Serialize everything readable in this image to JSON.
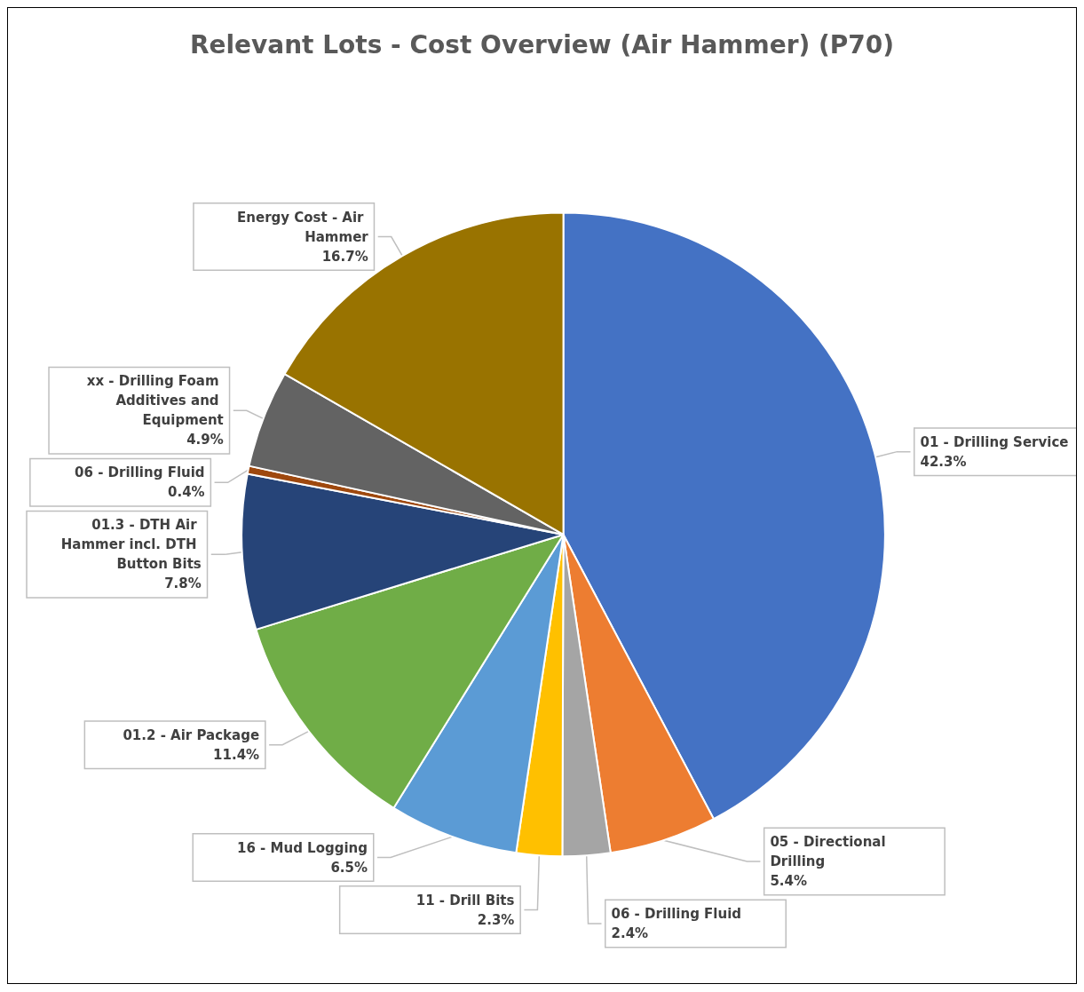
{
  "chart_data": {
    "type": "pie",
    "title": "Relevant Lots - Cost Overview (Air Hammer) (P70)",
    "categories": [
      "01 - Drilling Service",
      "05 - Directional Drilling",
      "06 - Drilling Fluid",
      "11 - Drill Bits",
      "16 - Mud Logging",
      "01.2 - Air Package",
      "01.3 - DTH Air Hammer incl. DTH Button Bits",
      "06 - Drilling Fluid",
      "xx - Drilling Foam Additives and Equipment",
      "Energy Cost - Air Hammer"
    ],
    "values": [
      42.3,
      5.4,
      2.4,
      2.3,
      6.5,
      11.4,
      7.8,
      0.4,
      4.9,
      16.7
    ],
    "value_labels": [
      "42.3%",
      "5.4%",
      "2.4%",
      "2.3%",
      "6.5%",
      "11.4%",
      "7.8%",
      "0.4%",
      "4.9%",
      "16.7%"
    ],
    "colors": [
      "#4472c4",
      "#ed7d31",
      "#a5a5a5",
      "#ffc000",
      "#5b9bd5",
      "#70ad47",
      "#264478",
      "#9e480e",
      "#636363",
      "#997300"
    ],
    "legend": false
  }
}
